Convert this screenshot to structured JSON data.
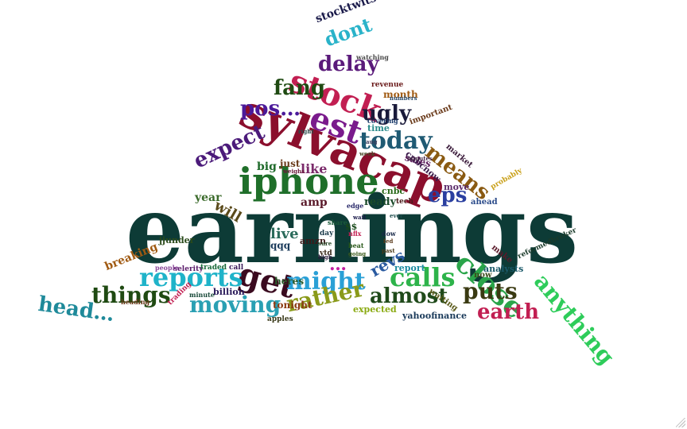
{
  "words": [
    {
      "text": "earnings",
      "color": "#0d3b36"
    },
    {
      "text": "sylvacap",
      "color": "#8b0f2d"
    },
    {
      "text": "iphone",
      "color": "#1f6f2a"
    },
    {
      "text": "stock",
      "color": "#c21f52"
    },
    {
      "text": "est",
      "color": "#7a1a8c"
    },
    {
      "text": "today",
      "color": "#1f5a73"
    },
    {
      "text": "get",
      "color": "#3a0a1f"
    },
    {
      "text": "close",
      "color": "#2aa54a"
    },
    {
      "text": "reports",
      "color": "#1fb3c9"
    },
    {
      "text": "calls",
      "color": "#2db34a"
    },
    {
      "text": "might",
      "color": "#2aa0d6"
    },
    {
      "text": "means",
      "color": "#8a5a12"
    },
    {
      "text": "expect",
      "color": "#4b1a7a"
    },
    {
      "text": "eps",
      "color": "#2a3fa0"
    },
    {
      "text": "puts",
      "color": "#3a3a12"
    },
    {
      "text": "almost",
      "color": "#1f4a1a"
    },
    {
      "text": "things",
      "color": "#1f4a12"
    },
    {
      "text": "moving",
      "color": "#2aa0b3"
    },
    {
      "text": "rather",
      "color": "#8a9a1a"
    },
    {
      "text": "earth",
      "color": "#c21f52"
    },
    {
      "text": "anything",
      "color": "#2ecc5a"
    },
    {
      "text": "head…",
      "color": "#1f8a9a"
    },
    {
      "text": "delay",
      "color": "#5a1a7a"
    },
    {
      "text": "dont",
      "color": "#2ab3c9"
    },
    {
      "text": "fang",
      "color": "#1f4a12"
    },
    {
      "text": "pos…",
      "color": "#4b1a9a"
    },
    {
      "text": "ugly",
      "color": "#1a1a3a"
    },
    {
      "text": "stocktwits",
      "color": "#1a1a4a"
    },
    {
      "text": "revs",
      "color": "#2a5aa0"
    },
    {
      "text": "live",
      "color": "#2a6a5a"
    },
    {
      "text": "will",
      "color": "#5a4a1a"
    },
    {
      "text": "year",
      "color": "#3a6a2a"
    },
    {
      "text": "big",
      "color": "#1f6a2a"
    },
    {
      "text": "like",
      "color": "#7a2a6a"
    },
    {
      "text": "just",
      "color": "#6a3a1a"
    },
    {
      "text": "amp",
      "color": "#5a1a2a"
    },
    {
      "text": "qqq",
      "color": "#1a3a5a"
    },
    {
      "text": "breaking",
      "color": "#a05a12"
    },
    {
      "text": "jjunder",
      "color": "#2a4a1a"
    },
    {
      "text": "billion",
      "color": "#2a1a5a"
    },
    {
      "text": "yahoofinance",
      "color": "#1a3a5a"
    },
    {
      "text": "tonight",
      "color": "#8a3a12"
    },
    {
      "text": "heres",
      "color": "#2a5a2a"
    },
    {
      "text": "ready",
      "color": "#1a4a2a"
    },
    {
      "text": "amzn",
      "color": "#3a1a1a"
    },
    {
      "text": "expected",
      "color": "#8aaa12"
    },
    {
      "text": "month",
      "color": "#a05a12"
    },
    {
      "text": "time",
      "color": "#2a8a8a"
    },
    {
      "text": "sales",
      "color": "#5a1a5a"
    },
    {
      "text": "cnbcnow",
      "color": "#3a1a4a"
    },
    {
      "text": "cnbc",
      "color": "#2a6a1a"
    },
    {
      "text": "report",
      "color": "#1a8aa0"
    },
    {
      "text": "now",
      "color": "#3a4a1a"
    },
    {
      "text": "analysts",
      "color": "#1a5a6a"
    },
    {
      "text": "make",
      "color": "#5a1a2a"
    },
    {
      "text": "ahead",
      "color": "#2a4a8a"
    },
    {
      "text": "probably",
      "color": "#c9a01a"
    },
    {
      "text": "move",
      "color": "#5a2a6a"
    },
    {
      "text": "market",
      "color": "#3a1a3a"
    },
    {
      "text": "important",
      "color": "#6a3a1a"
    },
    {
      "text": "covering",
      "color": "#1a3a6a"
    },
    {
      "text": "revenue",
      "color": "#6a1a1a"
    },
    {
      "text": "numbers",
      "color": "#2a4a6a"
    },
    {
      "text": "watching",
      "color": "#4a4a4a"
    },
    {
      "text": "waiting",
      "color": "#5a5a1a"
    },
    {
      "text": "reformedbroker",
      "color": "#1a3a2a"
    },
    {
      "text": "selerity",
      "color": "#5a1a6a"
    },
    {
      "text": "traded",
      "color": "#1a6a3a"
    },
    {
      "text": "call",
      "color": "#3a1a5a"
    },
    {
      "text": "minute",
      "color": "#1a4a3a"
    },
    {
      "text": "apples",
      "color": "#3a3a1a"
    },
    {
      "text": "people",
      "color": "#8a4a9a"
    },
    {
      "text": "trading",
      "color": "#c21f52"
    },
    {
      "text": "heading",
      "color": "#6a3a1a"
    },
    {
      "text": "share",
      "color": "#1a5a3a"
    },
    {
      "text": "edge",
      "color": "#2a2a6a"
    },
    {
      "text": "tech",
      "color": "#4a1a1a"
    },
    {
      "text": "beat",
      "color": "#2a5a1a"
    },
    {
      "text": "day",
      "color": "#1a3a4a"
    },
    {
      "text": "ytd",
      "color": "#3a2a1a"
    },
    {
      "text": "nflx",
      "color": "#c21f52"
    },
    {
      "text": "dow",
      "color": "#1a2a4a"
    },
    {
      "text": "sure",
      "color": "#2a4a2a"
    },
    {
      "text": "minutes",
      "color": "#4a2a4a"
    },
    {
      "text": "weighs",
      "color": "#6a1a3a"
    },
    {
      "text": "right",
      "color": "#2a4a4a"
    },
    {
      "text": "going",
      "color": "#3a5a1a"
    },
    {
      "text": "wait",
      "color": "#1a1a4a"
    },
    {
      "text": "past",
      "color": "#4a3a1a"
    },
    {
      "text": "high",
      "color": "#2a1a3a"
    },
    {
      "text": "ever",
      "color": "#1a4a4a"
    },
    {
      "text": "fed",
      "color": "#5a3a1a"
    },
    {
      "text": "aug",
      "color": "#3a3a5a"
    },
    {
      "text": "week",
      "color": "#4a4a2a"
    },
    {
      "text": "…",
      "color": "#c21fa0"
    },
    {
      "text": "$$",
      "color": "#1a4a1a"
    }
  ]
}
